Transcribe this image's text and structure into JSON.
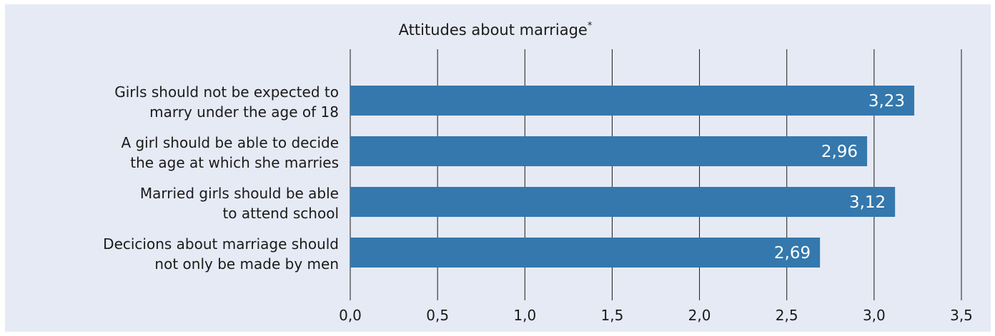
{
  "chart_data": {
    "type": "bar",
    "orientation": "horizontal",
    "title": "Attitudes about marriage",
    "title_note": "*",
    "categories": [
      [
        "Girls should not be expected to",
        "marry under the age of 18"
      ],
      [
        "A girl should be able to decide",
        "the age at which she marries"
      ],
      [
        "Married girls should be able",
        "to attend school"
      ],
      [
        "Decicions about marriage should",
        "not only be made by men"
      ]
    ],
    "values": [
      3.23,
      2.96,
      3.12,
      2.69
    ],
    "value_labels": [
      "3,23",
      "2,96",
      "3,12",
      "2,69"
    ],
    "xlim": [
      0,
      3.5
    ],
    "x_ticks": [
      "0,0",
      "0,5",
      "1,0",
      "1,5",
      "2,0",
      "2,5",
      "3,0",
      "3,5"
    ],
    "grid": "vertical",
    "bar_color": "#3478ad",
    "background_color": "#e6eaf5"
  }
}
